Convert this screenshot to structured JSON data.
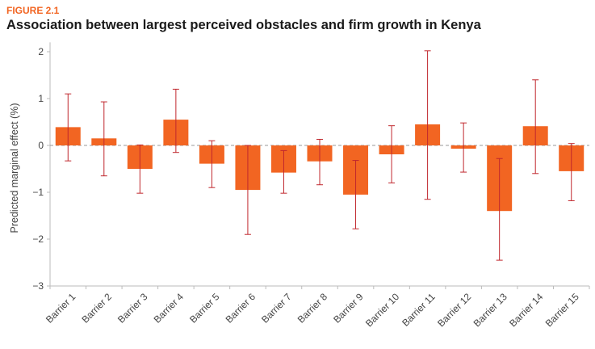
{
  "header": {
    "figure_label": "FIGURE 2.1",
    "title": "Association between largest perceived obstacles and firm growth in Kenya"
  },
  "colors": {
    "bar": "#f26522",
    "error_bar": "#c0272d",
    "zero_line": "#999999",
    "axis": "#bbbbbb"
  },
  "chart_data": {
    "type": "bar",
    "title": "Association between largest perceived obstacles and firm growth in Kenya",
    "xlabel": "",
    "ylabel": "Predicted marginal effect (%)",
    "ylim": [
      -3,
      2.2
    ],
    "yticks": [
      2,
      1,
      0,
      -1,
      -2,
      -3
    ],
    "ytick_labels": [
      "2",
      "1",
      "0",
      "−1",
      "−2",
      "−3"
    ],
    "zero_line_style": "dashed",
    "grid": false,
    "categories": [
      "Barrier 1",
      "Barrier 2",
      "Barrier 3",
      "Barrier 4",
      "Barrier 5",
      "Barrier 6",
      "Barrier 7",
      "Barrier 8",
      "Barrier 9",
      "Barrier 10",
      "Barrier 11",
      "Barrier 12",
      "Barrier 13",
      "Barrier 14",
      "Barrier 15"
    ],
    "values": [
      0.39,
      0.15,
      -0.5,
      0.55,
      -0.39,
      -0.95,
      -0.58,
      -0.34,
      -1.05,
      -0.19,
      0.45,
      -0.07,
      -1.4,
      0.41,
      -0.55
    ],
    "error_low": [
      -0.33,
      -0.65,
      -1.02,
      -0.15,
      -0.9,
      -1.9,
      -1.02,
      -0.84,
      -1.78,
      -0.8,
      -1.15,
      -0.57,
      -2.45,
      -0.6,
      -1.18
    ],
    "error_high": [
      1.1,
      0.93,
      0.01,
      1.2,
      0.1,
      0.0,
      -0.11,
      0.13,
      -0.32,
      0.42,
      2.02,
      0.48,
      -0.28,
      1.4,
      0.04
    ]
  }
}
